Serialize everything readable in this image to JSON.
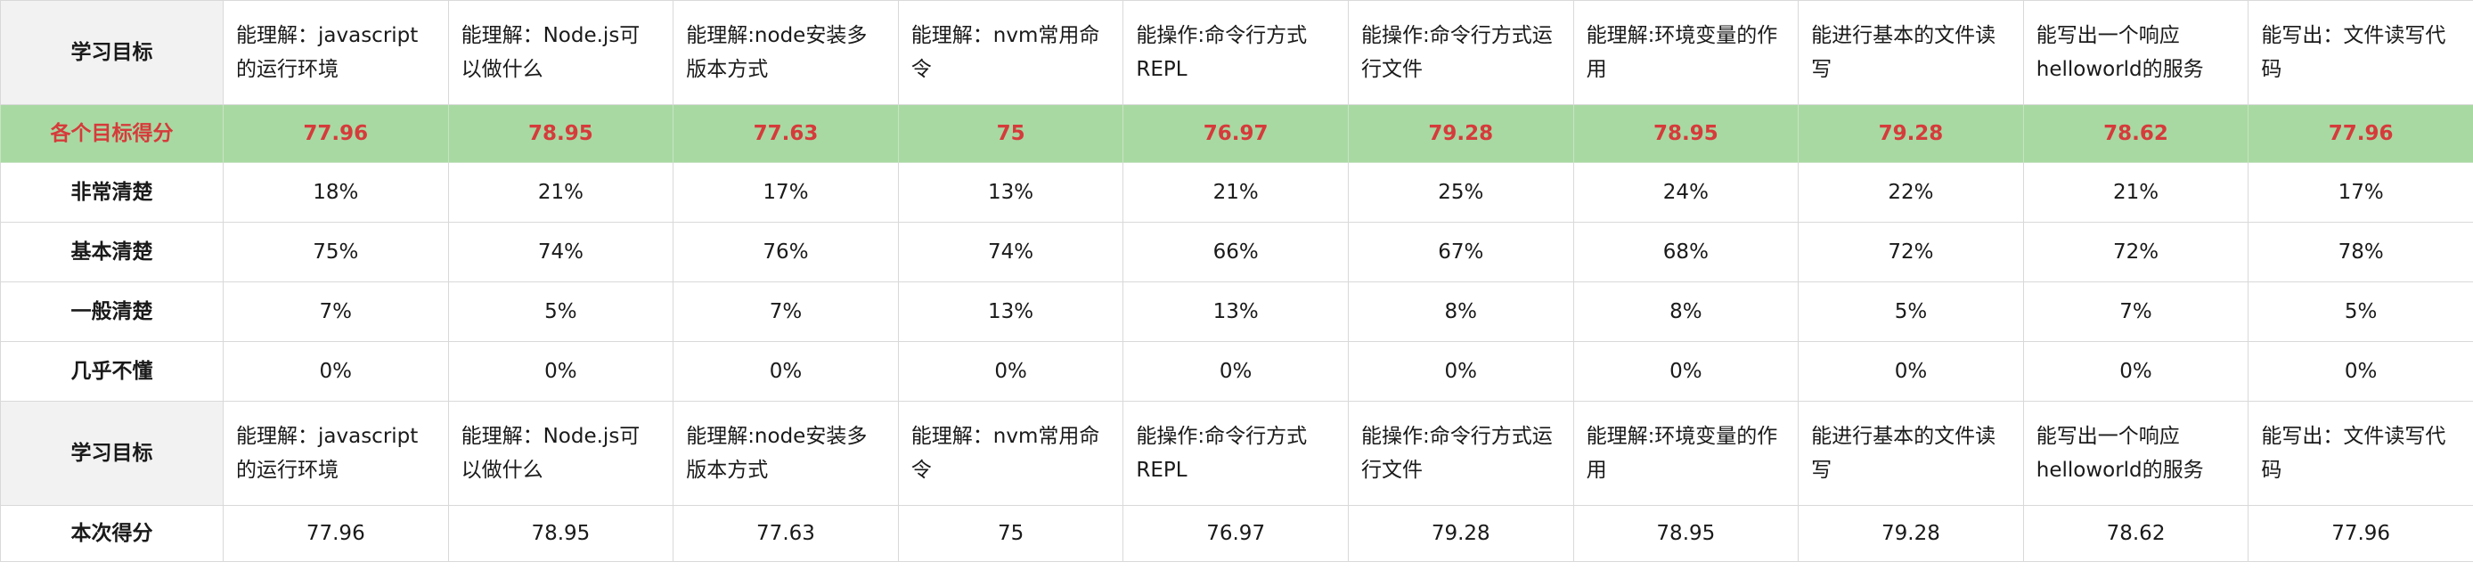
{
  "table": {
    "goal_header": "学习目标",
    "goals": [
      "能理解：javascript的运行环境",
      "能理解：Node.js可以做什么",
      "能理解:node安装多版本方式",
      "能理解：nvm常用命令",
      "能操作:命令行方式REPL",
      "能操作:命令行方式运行文件",
      "能理解:环境变量的作用",
      "能进行基本的文件读写",
      "能写出一个响应helloworld的服务",
      "能写出：文件读写代码"
    ],
    "score_row": {
      "label": "各个目标得分",
      "values": [
        "77.96",
        "78.95",
        "77.63",
        "75",
        "76.97",
        "79.28",
        "78.95",
        "79.28",
        "78.62",
        "77.96"
      ]
    },
    "rows": [
      {
        "label": "非常清楚",
        "values": [
          "18%",
          "21%",
          "17%",
          "13%",
          "21%",
          "25%",
          "24%",
          "22%",
          "21%",
          "17%"
        ]
      },
      {
        "label": "基本清楚",
        "values": [
          "75%",
          "74%",
          "76%",
          "74%",
          "66%",
          "67%",
          "68%",
          "72%",
          "72%",
          "78%"
        ]
      },
      {
        "label": "一般清楚",
        "values": [
          "7%",
          "5%",
          "7%",
          "13%",
          "13%",
          "8%",
          "8%",
          "5%",
          "7%",
          "5%"
        ]
      },
      {
        "label": "几乎不懂",
        "values": [
          "0%",
          "0%",
          "0%",
          "0%",
          "0%",
          "0%",
          "0%",
          "0%",
          "0%",
          "0%"
        ]
      }
    ],
    "goal_header_2": "学习目标",
    "current_row": {
      "label": "本次得分",
      "values": [
        "77.96",
        "78.95",
        "77.63",
        "75",
        "76.97",
        "79.28",
        "78.95",
        "79.28",
        "78.62",
        "77.96"
      ]
    },
    "colors": {
      "score_row_bg": "#a8d9a2",
      "score_text": "#d63b3b",
      "header_bg": "#f2f2f2"
    }
  }
}
